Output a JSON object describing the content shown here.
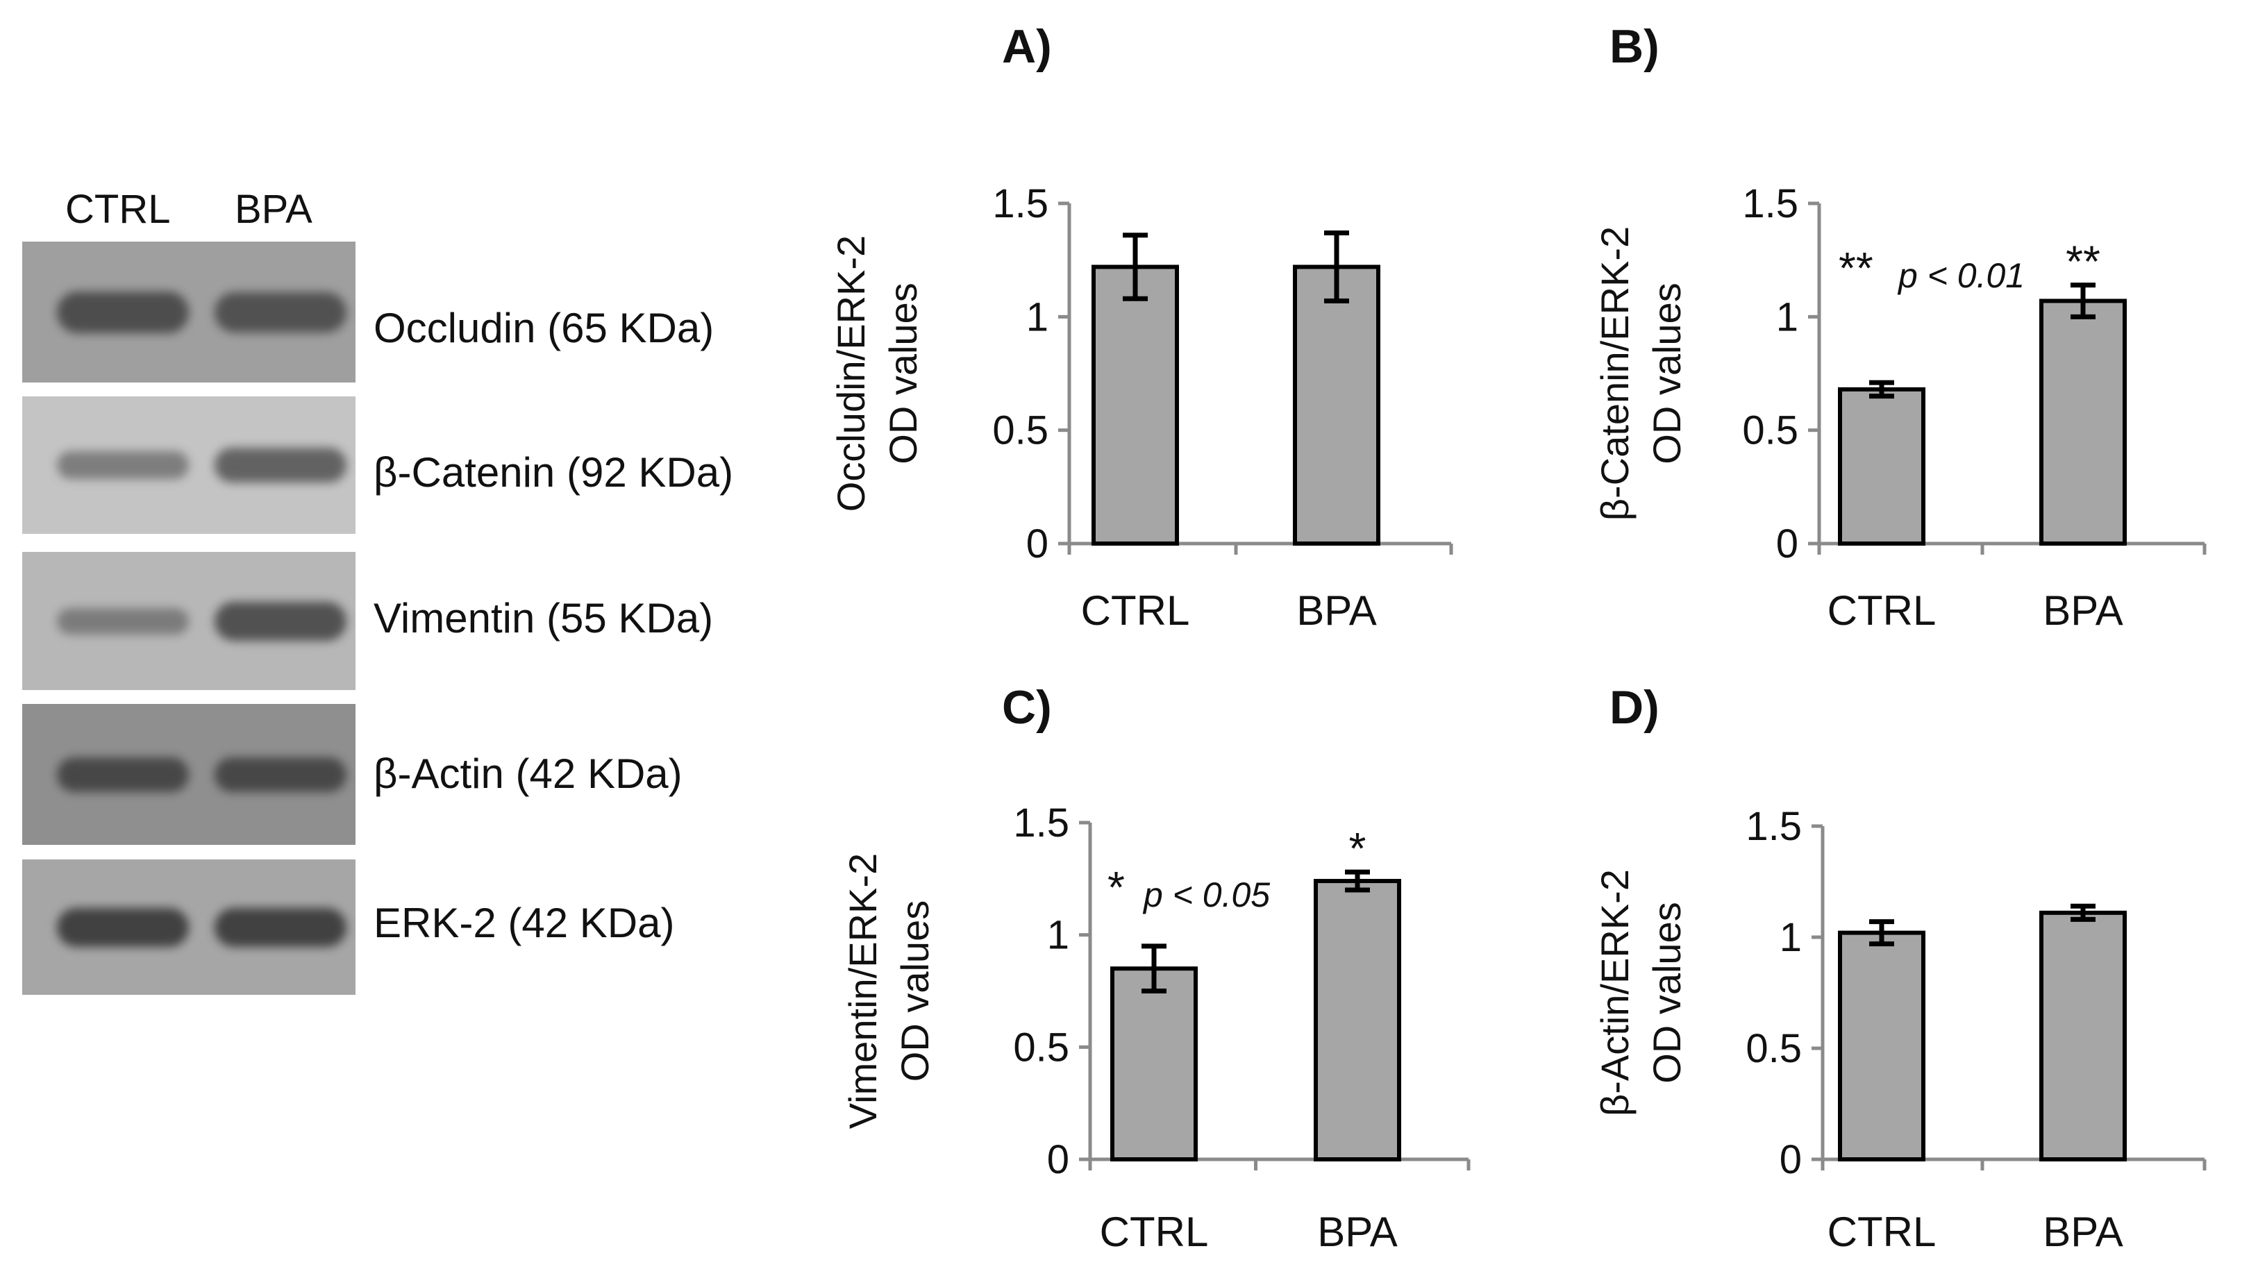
{
  "blot": {
    "lanes": [
      "CTRL",
      "BPA"
    ],
    "rows": [
      {
        "label": "Occludin (65 KDa)",
        "background": "#9f9f9f",
        "band_color": "#444444",
        "intensity": [
          0.85,
          0.8
        ]
      },
      {
        "label": "β-Catenin (92 KDa)",
        "background": "#c4c4c4",
        "band_color": "#3a3a3a",
        "intensity": [
          0.35,
          0.6
        ]
      },
      {
        "label": "Vimentin (55 KDa)",
        "background": "#b7b7b7",
        "band_color": "#3a3a3a",
        "intensity": [
          0.3,
          0.75
        ]
      },
      {
        "label": "β-Actin (42 KDa)",
        "background": "#8f8f8f",
        "band_color": "#2a2a2a",
        "intensity": [
          0.6,
          0.6
        ]
      },
      {
        "label": "ERK-2 (42 KDa)",
        "background": "#a6a6a6",
        "band_color": "#2a2a2a",
        "intensity": [
          0.75,
          0.75
        ]
      }
    ]
  },
  "chart_data": [
    {
      "panel": "A)",
      "type": "bar",
      "categories": [
        "CTRL",
        "BPA"
      ],
      "values": [
        1.22,
        1.22
      ],
      "errors": [
        0.14,
        0.15
      ],
      "ylabel_line1": "Occludin/ERK-2",
      "ylabel_line2": "OD values",
      "ylim": [
        0,
        1.5
      ],
      "yticks": [
        "0",
        "0.5",
        "1",
        "1.5"
      ],
      "bar_color": "#a6a6a6",
      "significance": [],
      "annotation": null
    },
    {
      "panel": "B)",
      "type": "bar",
      "categories": [
        "CTRL",
        "BPA"
      ],
      "values": [
        0.68,
        1.07
      ],
      "errors": [
        0.03,
        0.07
      ],
      "ylabel_line1": "β-Catenin/ERK-2",
      "ylabel_line2": "OD values",
      "ylim": [
        0,
        1.5
      ],
      "yticks": [
        "0",
        "0.5",
        "1",
        "1.5"
      ],
      "bar_color": "#a6a6a6",
      "significance": [
        "",
        "**"
      ],
      "annotation": {
        "stars": "**",
        "text": "p < 0.01"
      }
    },
    {
      "panel": "C)",
      "type": "bar",
      "categories": [
        "CTRL",
        "BPA"
      ],
      "values": [
        0.85,
        1.24
      ],
      "errors": [
        0.1,
        0.04
      ],
      "ylabel_line1": "Vimentin/ERK-2",
      "ylabel_line2": "OD values",
      "ylim": [
        0,
        1.5
      ],
      "yticks": [
        "0",
        "0.5",
        "1",
        "1.5"
      ],
      "bar_color": "#a6a6a6",
      "significance": [
        "",
        "*"
      ],
      "annotation": {
        "stars": "*",
        "text": "p < 0.05"
      }
    },
    {
      "panel": "D)",
      "type": "bar",
      "categories": [
        "CTRL",
        "BPA"
      ],
      "values": [
        1.02,
        1.11
      ],
      "errors": [
        0.05,
        0.03
      ],
      "ylabel_line1": "β-Actin/ERK-2",
      "ylabel_line2": "OD values",
      "ylim": [
        0,
        1.5
      ],
      "yticks": [
        "0",
        "0.5",
        "1",
        "1.5"
      ],
      "bar_color": "#a6a6a6",
      "significance": [],
      "annotation": null
    }
  ]
}
